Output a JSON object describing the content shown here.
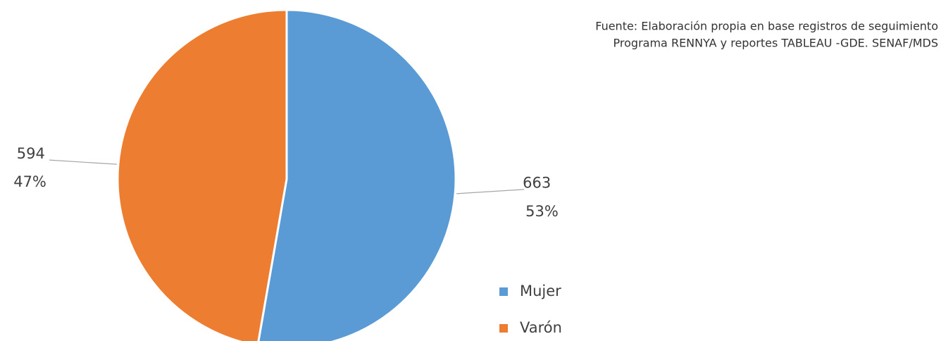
{
  "chart_data": {
    "type": "pie",
    "categories": [
      "Mujer",
      "Varón"
    ],
    "values": [
      663,
      594
    ],
    "value_labels": [
      "53%",
      "47%"
    ],
    "colors": [
      "#5b9bd5",
      "#ed7d31"
    ],
    "note": [
      "Fuente: Elaboración propia en base registros de seguimiento",
      "Programa RENNYA y reportes TABLEAU -GDE. SENAF/MDS"
    ],
    "legend": "bottom-right"
  }
}
